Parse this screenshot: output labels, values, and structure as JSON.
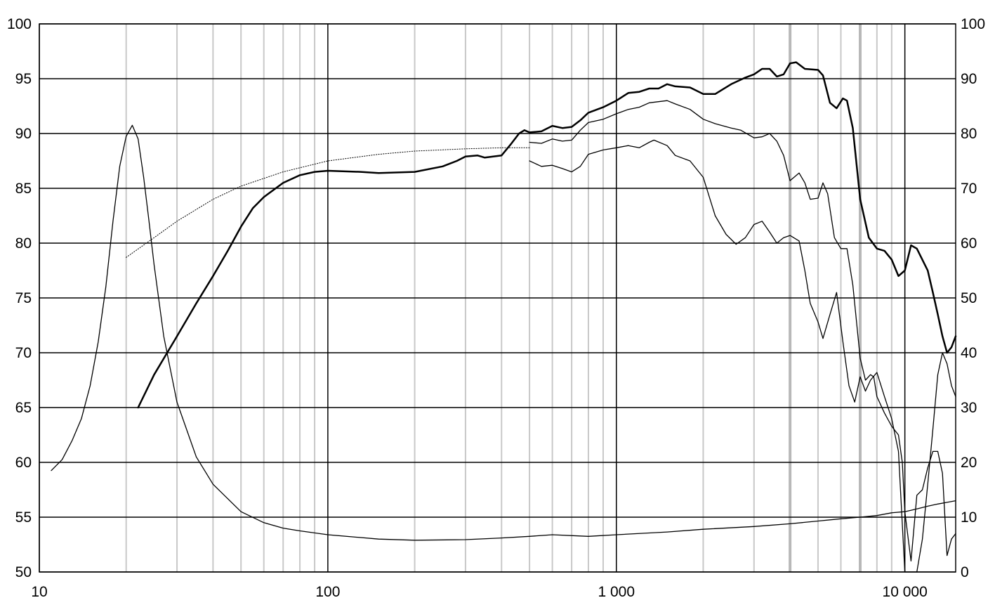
{
  "chart_data": {
    "type": "line",
    "title": "",
    "xlabel": "",
    "ylabel": "",
    "y2label": "",
    "x_scale": "log",
    "xlim": [
      10,
      15000
    ],
    "ylim": [
      50,
      100
    ],
    "y2lim": [
      0,
      100
    ],
    "grid": true,
    "x_ticks": [
      {
        "value": 10,
        "label": "10"
      },
      {
        "value": 100,
        "label": "100"
      },
      {
        "value": 1000,
        "label": "1 000"
      },
      {
        "value": 10000,
        "label": "10 000"
      }
    ],
    "y_ticks": [
      {
        "value": 100,
        "label": "100"
      },
      {
        "value": 95,
        "label": "95"
      },
      {
        "value": 90,
        "label": "90"
      },
      {
        "value": 85,
        "label": "85"
      },
      {
        "value": 80,
        "label": "80"
      },
      {
        "value": 75,
        "label": "75"
      },
      {
        "value": 70,
        "label": "70"
      },
      {
        "value": 65,
        "label": "65"
      },
      {
        "value": 60,
        "label": "60"
      },
      {
        "value": 55,
        "label": "55"
      },
      {
        "value": 50,
        "label": "50"
      }
    ],
    "y2_ticks": [
      {
        "value": 100,
        "label": "100"
      },
      {
        "value": 90,
        "label": "90"
      },
      {
        "value": 80,
        "label": "80"
      },
      {
        "value": 70,
        "label": "70"
      },
      {
        "value": 60,
        "label": "60"
      },
      {
        "value": 50,
        "label": "50"
      },
      {
        "value": 40,
        "label": "40"
      },
      {
        "value": 30,
        "label": "30"
      },
      {
        "value": 20,
        "label": "20"
      },
      {
        "value": 10,
        "label": "10"
      },
      {
        "value": 0,
        "label": "0"
      }
    ],
    "series": [
      {
        "axis": "left",
        "style": "dotted",
        "width": 1,
        "points": [
          [
            20,
            78.7
          ],
          [
            25,
            80.5
          ],
          [
            30,
            82
          ],
          [
            40,
            84
          ],
          [
            50,
            85.2
          ],
          [
            70,
            86.5
          ],
          [
            100,
            87.5
          ],
          [
            150,
            88.1
          ],
          [
            200,
            88.4
          ],
          [
            300,
            88.6
          ],
          [
            400,
            88.7
          ],
          [
            500,
            88.7
          ]
        ]
      },
      {
        "axis": "left",
        "style": "solid",
        "width": 2.5,
        "points": [
          [
            22,
            65
          ],
          [
            25,
            68
          ],
          [
            30,
            71.5
          ],
          [
            35,
            74.5
          ],
          [
            40,
            77
          ],
          [
            45,
            79.3
          ],
          [
            50,
            81.5
          ],
          [
            55,
            83.2
          ],
          [
            60,
            84.2
          ],
          [
            70,
            85.5
          ],
          [
            80,
            86.2
          ],
          [
            90,
            86.5
          ],
          [
            100,
            86.6
          ],
          [
            130,
            86.5
          ],
          [
            150,
            86.4
          ],
          [
            200,
            86.5
          ],
          [
            250,
            87
          ],
          [
            280,
            87.5
          ],
          [
            300,
            87.9
          ],
          [
            330,
            88
          ],
          [
            350,
            87.8
          ],
          [
            400,
            88
          ],
          [
            430,
            89
          ],
          [
            460,
            90
          ],
          [
            480,
            90.3
          ],
          [
            500,
            90.1
          ],
          [
            550,
            90.2
          ],
          [
            600,
            90.7
          ],
          [
            650,
            90.5
          ],
          [
            700,
            90.6
          ],
          [
            750,
            91.2
          ],
          [
            800,
            91.9
          ],
          [
            900,
            92.4
          ],
          [
            1000,
            93
          ],
          [
            1100,
            93.7
          ],
          [
            1200,
            93.8
          ],
          [
            1300,
            94.1
          ],
          [
            1400,
            94.1
          ],
          [
            1500,
            94.5
          ],
          [
            1600,
            94.3
          ],
          [
            1800,
            94.2
          ],
          [
            2000,
            93.6
          ],
          [
            2200,
            93.6
          ],
          [
            2500,
            94.5
          ],
          [
            2800,
            95.1
          ],
          [
            3000,
            95.4
          ],
          [
            3200,
            95.9
          ],
          [
            3400,
            95.9
          ],
          [
            3600,
            95.2
          ],
          [
            3800,
            95.4
          ],
          [
            4000,
            96.4
          ],
          [
            4200,
            96.5
          ],
          [
            4500,
            95.9
          ],
          [
            5000,
            95.8
          ],
          [
            5200,
            95.3
          ],
          [
            5500,
            92.8
          ],
          [
            5800,
            92.3
          ],
          [
            6100,
            93.2
          ],
          [
            6300,
            93
          ],
          [
            6600,
            90.5
          ],
          [
            7000,
            84
          ],
          [
            7500,
            80.5
          ],
          [
            8000,
            79.5
          ],
          [
            8500,
            79.3
          ],
          [
            9000,
            78.5
          ],
          [
            9500,
            77
          ],
          [
            10000,
            77.5
          ],
          [
            10500,
            79.8
          ],
          [
            11000,
            79.5
          ],
          [
            12000,
            77.5
          ],
          [
            12500,
            75.5
          ],
          [
            13000,
            73.5
          ],
          [
            13500,
            71.5
          ],
          [
            14000,
            70
          ],
          [
            14500,
            70.5
          ],
          [
            15000,
            71.5
          ]
        ]
      },
      {
        "axis": "left",
        "style": "solid",
        "width": 1.3,
        "points": [
          [
            500,
            89.2
          ],
          [
            550,
            89.1
          ],
          [
            600,
            89.5
          ],
          [
            650,
            89.3
          ],
          [
            700,
            89.4
          ],
          [
            750,
            90.3
          ],
          [
            800,
            91
          ],
          [
            900,
            91.3
          ],
          [
            1000,
            91.8
          ],
          [
            1100,
            92.2
          ],
          [
            1200,
            92.4
          ],
          [
            1300,
            92.8
          ],
          [
            1500,
            93
          ],
          [
            1600,
            92.7
          ],
          [
            1800,
            92.2
          ],
          [
            2000,
            91.3
          ],
          [
            2200,
            90.9
          ],
          [
            2500,
            90.5
          ],
          [
            2700,
            90.3
          ],
          [
            3000,
            89.6
          ],
          [
            3200,
            89.7
          ],
          [
            3400,
            90
          ],
          [
            3600,
            89.3
          ],
          [
            3800,
            88
          ],
          [
            4000,
            85.7
          ],
          [
            4300,
            86.4
          ],
          [
            4500,
            85.5
          ],
          [
            4700,
            84
          ],
          [
            5000,
            84.1
          ],
          [
            5200,
            85.5
          ],
          [
            5400,
            84.5
          ],
          [
            5700,
            80.5
          ],
          [
            6000,
            79.5
          ],
          [
            6300,
            79.5
          ],
          [
            6600,
            76.2
          ],
          [
            7000,
            69.5
          ],
          [
            7300,
            67.5
          ],
          [
            7600,
            68
          ],
          [
            7800,
            67.8
          ],
          [
            8000,
            66
          ],
          [
            8500,
            64.5
          ],
          [
            9000,
            63.3
          ],
          [
            9500,
            62.5
          ],
          [
            9800,
            60
          ],
          [
            10000,
            55.5
          ],
          [
            10500,
            51
          ],
          [
            11000,
            57
          ],
          [
            11500,
            57.5
          ],
          [
            12000,
            59.5
          ],
          [
            12500,
            61
          ],
          [
            13000,
            61
          ],
          [
            13500,
            59
          ],
          [
            14000,
            51.5
          ],
          [
            14500,
            53
          ],
          [
            15000,
            53.5
          ]
        ]
      },
      {
        "axis": "left",
        "style": "solid",
        "width": 1.3,
        "points": [
          [
            500,
            87.5
          ],
          [
            550,
            87
          ],
          [
            600,
            87.1
          ],
          [
            650,
            86.8
          ],
          [
            700,
            86.5
          ],
          [
            750,
            87
          ],
          [
            800,
            88.1
          ],
          [
            900,
            88.5
          ],
          [
            1000,
            88.7
          ],
          [
            1100,
            88.9
          ],
          [
            1200,
            88.7
          ],
          [
            1300,
            89.2
          ],
          [
            1350,
            89.4
          ],
          [
            1500,
            88.9
          ],
          [
            1600,
            88
          ],
          [
            1800,
            87.5
          ],
          [
            2000,
            86
          ],
          [
            2200,
            82.5
          ],
          [
            2400,
            80.8
          ],
          [
            2600,
            79.9
          ],
          [
            2800,
            80.5
          ],
          [
            3000,
            81.7
          ],
          [
            3200,
            82
          ],
          [
            3400,
            81
          ],
          [
            3600,
            80
          ],
          [
            3800,
            80.5
          ],
          [
            4000,
            80.7
          ],
          [
            4300,
            80.2
          ],
          [
            4500,
            77.5
          ],
          [
            4700,
            74.5
          ],
          [
            5000,
            72.8
          ],
          [
            5200,
            71.3
          ],
          [
            5500,
            73.5
          ],
          [
            5800,
            75.5
          ],
          [
            6100,
            71
          ],
          [
            6400,
            67
          ],
          [
            6700,
            65.5
          ],
          [
            7000,
            67.8
          ],
          [
            7300,
            66.5
          ],
          [
            7600,
            67.5
          ],
          [
            8000,
            68.2
          ],
          [
            8500,
            66
          ],
          [
            9000,
            64
          ],
          [
            9500,
            61
          ],
          [
            10000,
            50
          ],
          [
            10500,
            50
          ],
          [
            11000,
            50
          ],
          [
            11500,
            53
          ],
          [
            12000,
            58
          ],
          [
            12500,
            63
          ],
          [
            13000,
            68
          ],
          [
            13500,
            70
          ],
          [
            14000,
            69
          ],
          [
            14500,
            67
          ],
          [
            15000,
            66
          ]
        ]
      },
      {
        "axis": "right",
        "style": "solid",
        "width": 1.3,
        "points": [
          [
            11,
            18.5
          ],
          [
            12,
            20.5
          ],
          [
            13,
            24
          ],
          [
            14,
            28
          ],
          [
            15,
            34
          ],
          [
            16,
            42
          ],
          [
            17,
            52
          ],
          [
            18,
            64
          ],
          [
            19,
            74
          ],
          [
            20,
            79.5
          ],
          [
            21,
            81.5
          ],
          [
            22,
            79
          ],
          [
            23,
            72
          ],
          [
            24,
            64
          ],
          [
            25,
            56
          ],
          [
            27,
            43
          ],
          [
            30,
            31
          ],
          [
            35,
            21
          ],
          [
            40,
            16
          ],
          [
            50,
            11
          ],
          [
            60,
            9
          ],
          [
            70,
            8
          ],
          [
            80,
            7.5
          ],
          [
            100,
            6.8
          ],
          [
            150,
            6
          ],
          [
            200,
            5.8
          ],
          [
            300,
            5.9
          ],
          [
            400,
            6.2
          ],
          [
            500,
            6.5
          ],
          [
            600,
            6.8
          ],
          [
            800,
            6.5
          ],
          [
            1000,
            6.8
          ],
          [
            1500,
            7.3
          ],
          [
            2000,
            7.8
          ],
          [
            3000,
            8.3
          ],
          [
            4000,
            8.8
          ],
          [
            5000,
            9.3
          ],
          [
            6000,
            9.7
          ],
          [
            7000,
            10
          ],
          [
            8000,
            10.3
          ],
          [
            9000,
            10.8
          ],
          [
            10000,
            11
          ],
          [
            11000,
            11.5
          ],
          [
            12000,
            12
          ],
          [
            13000,
            12.4
          ],
          [
            14000,
            12.7
          ],
          [
            15000,
            13
          ]
        ]
      }
    ]
  }
}
